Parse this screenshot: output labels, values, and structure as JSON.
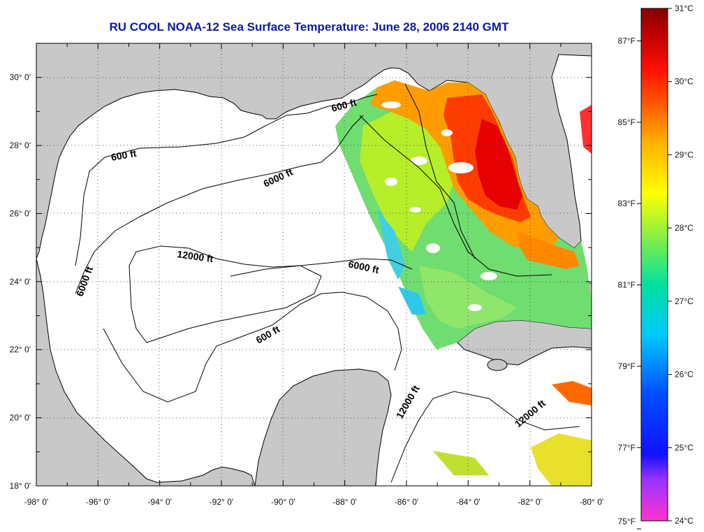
{
  "title": "RU COOL  NOAA-12  Sea Surface Temperature:  June 28, 2006 2140 GMT",
  "map": {
    "lon_range": [
      -98,
      -80
    ],
    "lat_range": [
      18,
      31
    ],
    "lon_labels": [
      "-98° 0'",
      "-96° 0'",
      "-94° 0'",
      "-92° 0'",
      "-90° 0'",
      "-88° 0'",
      "-86° 0'",
      "-84° 0'",
      "-82° 0'",
      "-80° 0'"
    ],
    "lat_labels": [
      "18° 0'",
      "20° 0'",
      "22° 0'",
      "24° 0'",
      "26° 0'",
      "28° 0'",
      "30° 0'"
    ],
    "grid": "dotted",
    "contour_labels": [
      "600 ft",
      "600 ft",
      "600 ft",
      "6000 ft",
      "6000 ft",
      "6000 ft",
      "12000 ft",
      "12000 ft",
      "12000 ft"
    ],
    "colors": {
      "land": "#c8c8c8",
      "ocean_no_data": "#ffffff",
      "contour": "#000000",
      "title": "#0b1a9e"
    }
  },
  "colorbar": {
    "celsius_labels": [
      "31°C",
      "30°C",
      "29°C",
      "28°C",
      "27°C",
      "26°C",
      "25°C",
      "24°C"
    ],
    "fahrenheit_labels": [
      "87°F",
      "85°F",
      "83°F",
      "81°F",
      "79°F",
      "77°F",
      "75°F"
    ],
    "range_c": [
      24,
      31
    ]
  }
}
